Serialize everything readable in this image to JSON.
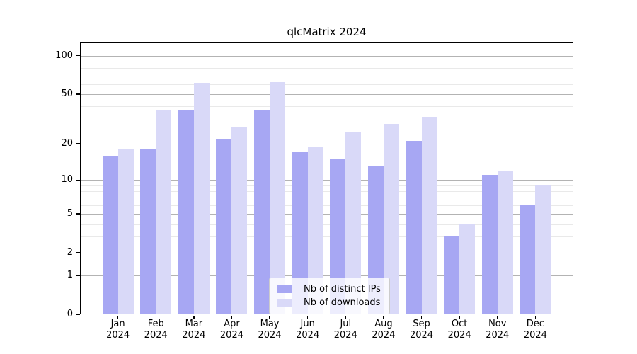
{
  "title": "qlcMatrix 2024",
  "colors": {
    "distinct_ips": "#a7a7f3",
    "downloads": "#d9d9f8",
    "grid_major": "#b3b3b3",
    "grid_minor": "#e9e9e9",
    "spine": "#000000",
    "legend_border": "#cccccc"
  },
  "legend": {
    "items": [
      {
        "label": "Nb of distinct IPs",
        "color": "#a7a7f3"
      },
      {
        "label": "Nb of downloads",
        "color": "#d9d9f8"
      }
    ]
  },
  "chart_data": {
    "type": "bar",
    "title": "qlcMatrix 2024",
    "categories": [
      "Jan 2024",
      "Feb 2024",
      "Mar 2024",
      "Apr 2024",
      "May 2024",
      "Jun 2024",
      "Jul 2024",
      "Aug 2024",
      "Sep 2024",
      "Oct 2024",
      "Nov 2024",
      "Dec 2024"
    ],
    "x_tick_months": [
      "Jan",
      "Feb",
      "Mar",
      "Apr",
      "May",
      "Jun",
      "Jul",
      "Aug",
      "Sep",
      "Oct",
      "Nov",
      "Dec"
    ],
    "x_tick_year": "2024",
    "series": [
      {
        "name": "Nb of distinct IPs",
        "color": "#a7a7f3",
        "values": [
          16,
          18,
          37,
          22,
          37,
          17,
          15,
          13,
          21,
          3,
          11,
          6
        ]
      },
      {
        "name": "Nb of downloads",
        "color": "#d9d9f8",
        "values": [
          18,
          37,
          61,
          27,
          62,
          19,
          25,
          29,
          33,
          4,
          12,
          9
        ]
      }
    ],
    "xlabel": "",
    "ylabel": "",
    "yscale": "log(value+1)",
    "ylim": [
      0,
      127
    ],
    "y_major_ticks": [
      100,
      50,
      20,
      10,
      5,
      2,
      1,
      0
    ],
    "y_minor_gridlines": [
      3,
      4,
      6,
      7,
      8,
      9,
      30,
      40,
      60,
      70,
      80,
      90
    ],
    "grid": true,
    "legend_position": "lower center"
  }
}
